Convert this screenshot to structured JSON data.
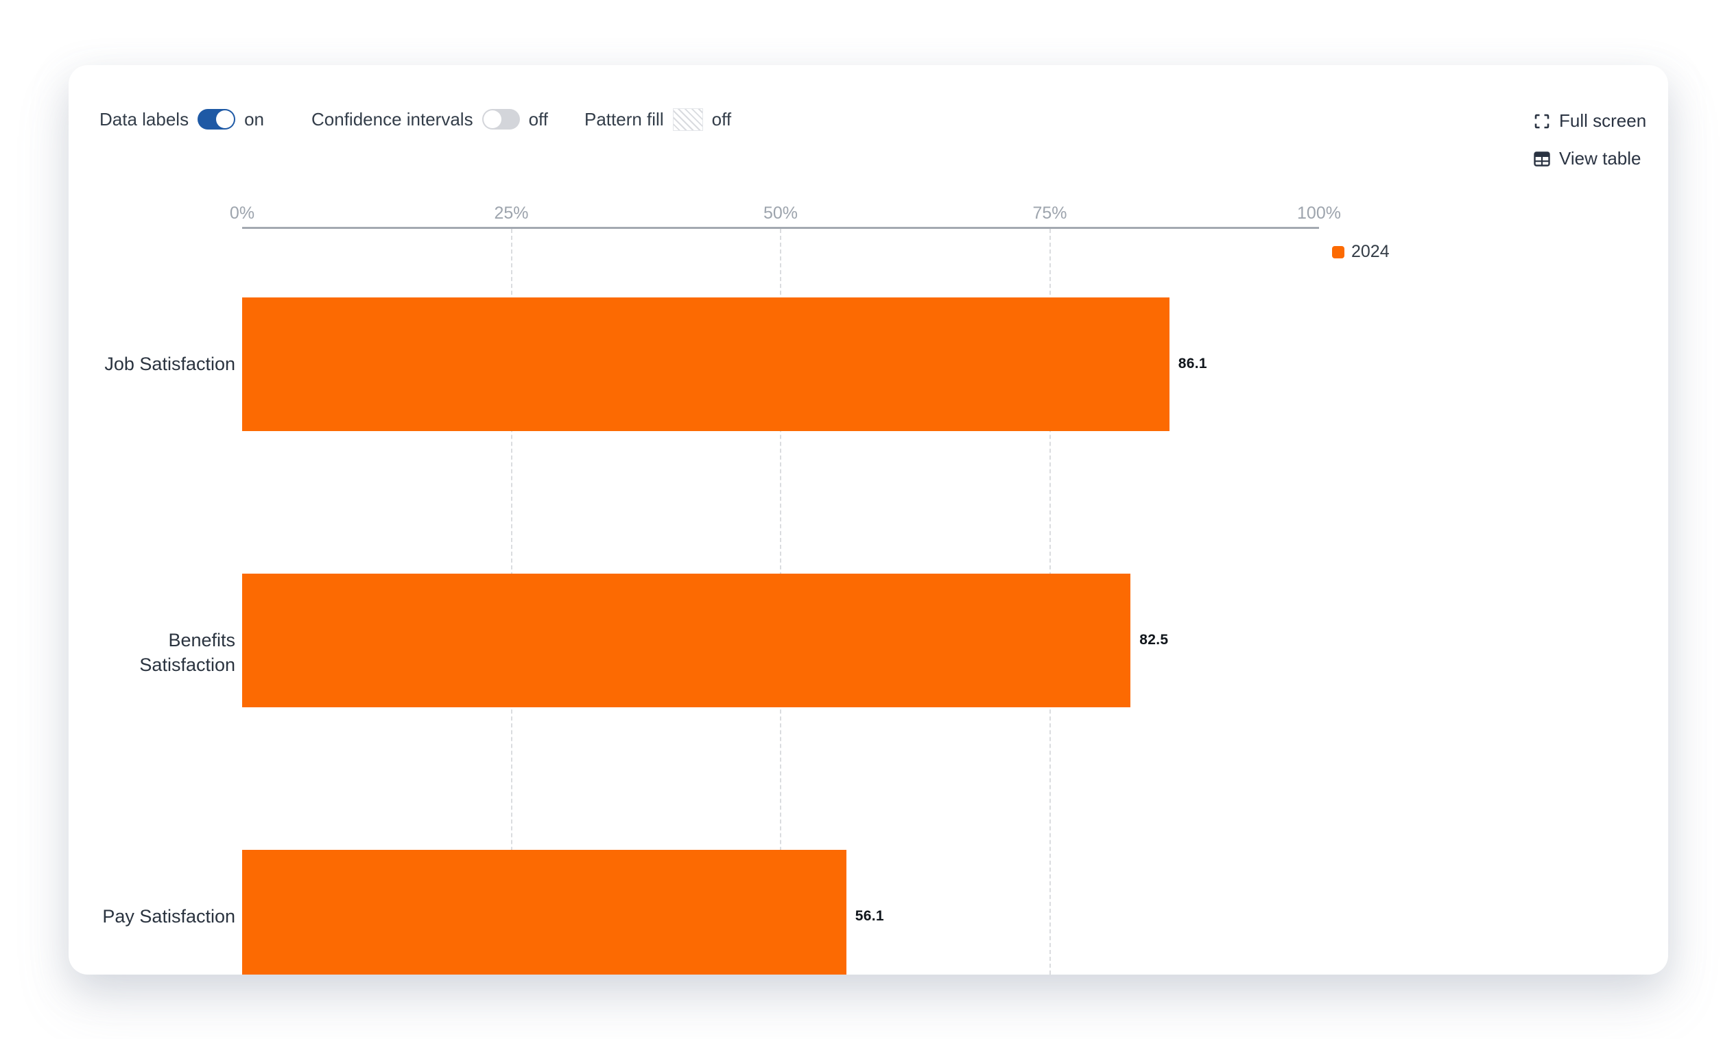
{
  "toolbar": {
    "data_labels": {
      "label": "Data labels",
      "state": "on"
    },
    "confidence_intervals": {
      "label": "Confidence intervals",
      "state": "off"
    },
    "pattern_fill": {
      "label": "Pattern fill",
      "state": "off"
    },
    "full_screen_label": "Full screen",
    "view_table_label": "View table"
  },
  "legend": {
    "label": "2024"
  },
  "colors": {
    "bar": "#fc6a02",
    "toggle_on": "#1e59a5",
    "toggle_off": "#d3d5da"
  },
  "chart_data": {
    "type": "bar",
    "orientation": "horizontal",
    "title": "",
    "xlabel": "",
    "ylabel": "",
    "categories": [
      "Job Satisfaction",
      "Benefits Satisfaction",
      "Pay Satisfaction"
    ],
    "series": [
      {
        "name": "2024",
        "color": "#fc6a02",
        "values": [
          86.1,
          82.5,
          56.1
        ]
      }
    ],
    "data_labels": [
      "86.1",
      "82.5",
      "56.1"
    ],
    "x_axis": {
      "range": [
        0,
        100
      ],
      "ticks": [
        0,
        25,
        50,
        75,
        100
      ],
      "tick_labels": [
        "0%",
        "25%",
        "50%",
        "75%",
        "100%"
      ],
      "unit": "%"
    },
    "gridlines": "vertical-dashed-at-25-50-75",
    "legend_position": "top-right",
    "data_labels_visible": true
  }
}
